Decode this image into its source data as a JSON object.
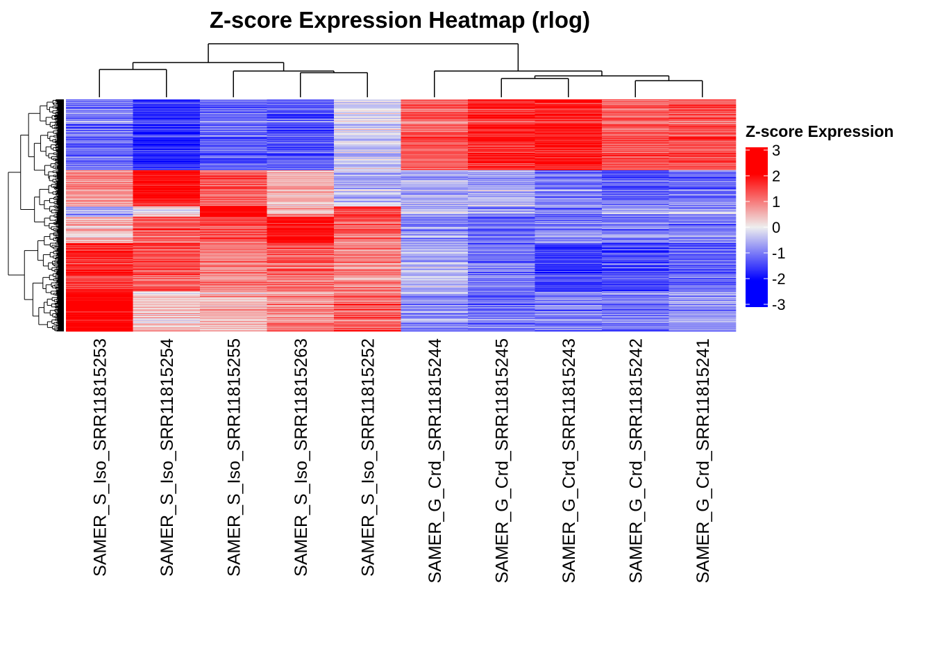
{
  "chart_data": {
    "type": "heatmap",
    "title": "Z-score Expression Heatmap (rlog)",
    "columns": [
      "SAMER_S_Iso_SRR11815253",
      "SAMER_S_Iso_SRR11815254",
      "SAMER_S_Iso_SRR11815255",
      "SAMER_S_Iso_SRR11815263",
      "SAMER_S_Iso_SRR11815252",
      "SAMER_G_Crd_SRR11815244",
      "SAMER_G_Crd_SRR11815245",
      "SAMER_G_Crd_SRR11815243",
      "SAMER_G_Crd_SRR11815242",
      "SAMER_G_Crd_SRR11815241"
    ],
    "row_clusters": [
      {
        "rows": 102,
        "mean_z": [
          -1.0,
          -1.6,
          -1.1,
          -1.2,
          -0.2,
          1.2,
          1.6,
          1.8,
          1.2,
          1.3
        ]
      },
      {
        "rows": 52,
        "mean_z": [
          0.8,
          2.0,
          1.2,
          0.5,
          -0.4,
          -0.6,
          -0.5,
          -0.9,
          -1.2,
          -1.0
        ]
      },
      {
        "rows": 15,
        "mean_z": [
          -0.6,
          0.2,
          2.4,
          0.6,
          1.5,
          -0.6,
          -0.8,
          -1.0,
          -0.8,
          -0.7
        ]
      },
      {
        "rows": 38,
        "mean_z": [
          0.5,
          1.3,
          1.4,
          2.0,
          1.2,
          -0.8,
          -1.2,
          -0.8,
          -1.0,
          -1.0
        ]
      },
      {
        "rows": 70,
        "mean_z": [
          1.6,
          1.3,
          0.9,
          1.1,
          0.8,
          -0.5,
          -1.0,
          -1.5,
          -1.4,
          -1.2
        ]
      },
      {
        "rows": 57,
        "mean_z": [
          2.3,
          0.4,
          0.5,
          0.9,
          1.2,
          -0.9,
          -1.1,
          -1.0,
          -1.0,
          -0.8
        ]
      }
    ],
    "column_dendrogram": [
      {
        "a": 3,
        "b": 4,
        "height": 0.46
      },
      {
        "a": 2,
        "b": "3+4",
        "height": 0.49
      },
      {
        "a": 0,
        "b": 1,
        "height": 0.52
      },
      {
        "a": "0+1",
        "b": "2+3+4",
        "height": 0.65
      },
      {
        "a": 8,
        "b": 9,
        "height": 0.31
      },
      {
        "a": 6,
        "b": 7,
        "height": 0.35
      },
      {
        "a": "6+7",
        "b": "8+9",
        "height": 0.4
      },
      {
        "a": 5,
        "b": "6+7+8+9",
        "height": 0.49
      },
      {
        "a": "0-4",
        "b": "5-9",
        "height": 1.0
      }
    ],
    "row_dendrogram": true,
    "color_scale": {
      "stops": [
        {
          "z": -2,
          "color": "#0000FF"
        },
        {
          "z": 0,
          "color": "#EEEEEE"
        },
        {
          "z": 2,
          "color": "#FF0000"
        }
      ],
      "range": [
        -3,
        3
      ]
    },
    "legend": {
      "title": "Z-score Expression",
      "ticks": [
        "3",
        "2",
        "1",
        "0",
        "-1",
        "-2",
        "-3"
      ],
      "placement": "right"
    }
  }
}
